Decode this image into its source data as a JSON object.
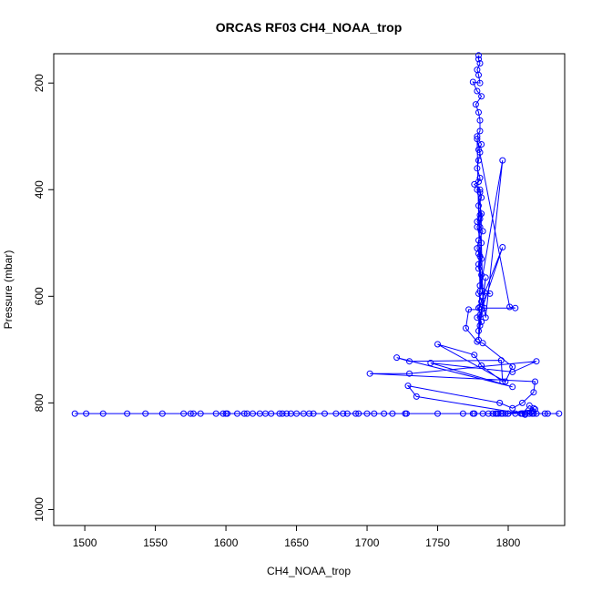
{
  "chart_data": {
    "type": "line",
    "title": "ORCAS RF03 CH4_NOAA_trop",
    "xlabel": "CH4_NOAA_trop",
    "ylabel": "Pressure (mbar)",
    "xlim": [
      1478,
      1840
    ],
    "ylim": [
      1030,
      145
    ],
    "y_reversed": true,
    "grid": false,
    "legend": "none",
    "x_ticks": [
      1500,
      1550,
      1600,
      1650,
      1700,
      1750,
      1800
    ],
    "y_ticks": [
      200,
      400,
      600,
      800,
      1000
    ],
    "marker": "open-circle",
    "color": "#0000ff",
    "series": [
      {
        "x": [
          1779,
          1779,
          1780,
          1778,
          1779,
          1780,
          1775,
          1778,
          1781,
          1777,
          1779,
          1780,
          1780,
          1778,
          1781,
          1779,
          1780,
          1779,
          1778,
          1780,
          1779,
          1776,
          1780,
          1781,
          1779,
          1780,
          1778,
          1780,
          1782,
          1779,
          1778,
          1780,
          1781,
          1779,
          1781,
          1780,
          1787,
          1779,
          1781,
          1780,
          1779,
          1796,
          1780,
          1778,
          1781,
          1780,
          1779,
          1784,
          1779,
          1781,
          1778,
          1780,
          1782,
          1779,
          1780,
          1778,
          1781,
          1779,
          1784,
          1796,
          1780,
          1778,
          1801,
          1805,
          1783,
          1781,
          1772,
          1770,
          1778,
          1782,
          1803,
          1798,
          1750,
          1776,
          1781,
          1796,
          1795,
          1730,
          1721,
          1803,
          1745,
          1803,
          1820,
          1730,
          1702,
          1819,
          1818,
          1810,
          1803,
          1794,
          1729,
          1735,
          1810,
          1815,
          1818,
          1817,
          1800,
          1798,
          1819,
          1809,
          1812,
          1816
        ],
        "y": [
          148,
          155,
          163,
          175,
          185,
          200,
          198,
          215,
          225,
          240,
          255,
          270,
          290,
          300,
          315,
          325,
          330,
          345,
          360,
          378,
          385,
          390,
          400,
          415,
          430,
          448,
          460,
          470,
          478,
          495,
          510,
          525,
          530,
          548,
          560,
          580,
          595,
          595,
          610,
          620,
          622,
          508,
          635,
          640,
          648,
          655,
          665,
          565,
          682,
          445,
          400,
          405,
          600,
          520,
          455,
          470,
          500,
          540,
          640,
          345,
          590,
          305,
          620,
          622,
          622,
          625,
          625,
          660,
          685,
          688,
          732,
          760,
          690,
          710,
          730,
          760,
          720,
          722,
          715,
          770,
          725,
          742,
          722,
          745,
          745,
          760,
          780,
          800,
          810,
          800,
          768,
          788,
          820,
          805,
          810,
          815,
          820,
          820,
          812,
          820,
          822,
          818
        ]
      },
      {
        "x": [
          1493,
          1501,
          1513,
          1530,
          1543,
          1555,
          1570,
          1575,
          1577,
          1582,
          1593,
          1598,
          1600,
          1601,
          1608,
          1613,
          1615,
          1619,
          1624,
          1628,
          1632,
          1638,
          1640,
          1643,
          1646,
          1650,
          1655,
          1659,
          1662,
          1670,
          1678,
          1683,
          1686,
          1692,
          1694,
          1700,
          1705,
          1712,
          1718,
          1727,
          1728,
          1750,
          1768,
          1775,
          1776,
          1782,
          1786,
          1789,
          1791,
          1792,
          1793,
          1795,
          1796,
          1800,
          1805,
          1810,
          1812,
          1815,
          1817,
          1818,
          1820,
          1826,
          1828,
          1836
        ],
        "y": [
          820,
          820,
          820,
          820,
          820,
          820,
          820,
          820,
          820,
          820,
          820,
          820,
          820,
          820,
          820,
          820,
          820,
          820,
          820,
          820,
          820,
          820,
          820,
          820,
          820,
          820,
          820,
          820,
          820,
          820,
          820,
          820,
          820,
          820,
          820,
          820,
          820,
          820,
          820,
          820,
          820,
          820,
          820,
          820,
          820,
          820,
          820,
          820,
          820,
          820,
          820,
          820,
          820,
          820,
          820,
          820,
          820,
          820,
          820,
          820,
          820,
          820,
          820,
          820
        ]
      }
    ]
  }
}
